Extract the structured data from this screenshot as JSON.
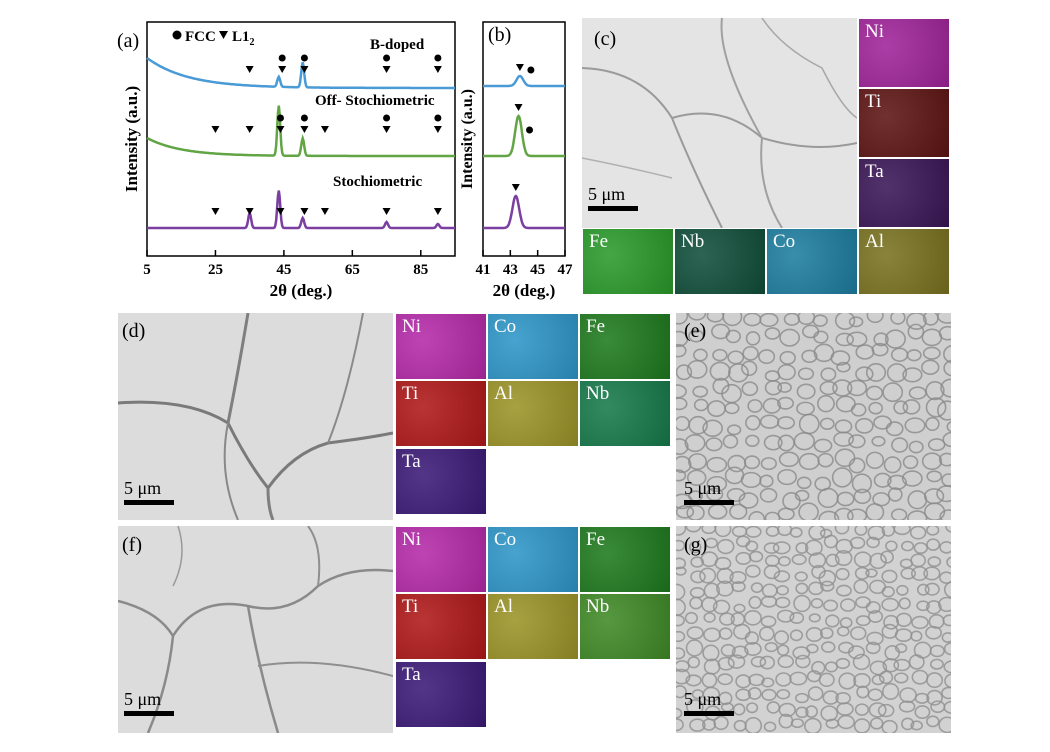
{
  "panels": {
    "a": "(a)",
    "b": "(b)",
    "c": "(c)",
    "d": "(d)",
    "e": "(e)",
    "f": "(f)",
    "g": "(g)"
  },
  "legend": {
    "fcc": "FCC",
    "l12": "L1",
    "l12_sub": "2"
  },
  "scale_label": "5 μm",
  "maps": {
    "c_side": [
      {
        "el": "Ni",
        "color": "#a0249a"
      },
      {
        "el": "Ti",
        "color": "#5e1414"
      },
      {
        "el": "Ta",
        "color": "#3a1656"
      }
    ],
    "c_bottom": [
      {
        "el": "Fe",
        "color": "#2a9a2a"
      },
      {
        "el": "Nb",
        "color": "#104e3a"
      },
      {
        "el": "Co",
        "color": "#1d7ea0"
      },
      {
        "el": "Al",
        "color": "#7a7220"
      }
    ],
    "d": [
      {
        "el": "Ni",
        "color": "#b52aa9"
      },
      {
        "el": "Co",
        "color": "#2e96c8"
      },
      {
        "el": "Fe",
        "color": "#1e7a1e"
      },
      {
        "el": "Ti",
        "color": "#b01818"
      },
      {
        "el": "Al",
        "color": "#9c9428"
      },
      {
        "el": "Nb",
        "color": "#167a4a"
      },
      {
        "el": "Ta",
        "color": "#3c1a78"
      }
    ],
    "f": [
      {
        "el": "Ni",
        "color": "#b52aa9"
      },
      {
        "el": "Co",
        "color": "#2e96c8"
      },
      {
        "el": "Fe",
        "color": "#1e7a1e"
      },
      {
        "el": "Ti",
        "color": "#b01818"
      },
      {
        "el": "Al",
        "color": "#9c9428"
      },
      {
        "el": "Nb",
        "color": "#3f8a26"
      },
      {
        "el": "Ta",
        "color": "#3c1a78"
      }
    ]
  },
  "chart_data": [
    {
      "type": "line",
      "panel": "a",
      "xlabel": "2θ (deg.)",
      "ylabel": "Intensity (a.u.)",
      "xlim": [
        5,
        95
      ],
      "xticks": [
        5,
        25,
        45,
        65,
        85
      ],
      "series": [
        {
          "name": "B-doped",
          "color": "#4a9ad6",
          "peaks": [
            [
              43.5,
              0.2
            ],
            [
              50.5,
              0.5
            ]
          ],
          "fcc_marks": [
            44.5,
            51,
            75,
            90
          ],
          "l12_marks": [
            35,
            44.5,
            51,
            75,
            90
          ]
        },
        {
          "name": "Off- Stochiometric",
          "color": "#62a545",
          "peaks": [
            [
              43.5,
              1.0
            ],
            [
              50.5,
              0.35
            ]
          ],
          "fcc_marks": [
            44,
            51,
            75,
            90
          ],
          "l12_marks": [
            25,
            35,
            44,
            51,
            57,
            75,
            90
          ]
        },
        {
          "name": "Stochiometric",
          "color": "#7a3fa0",
          "peaks": [
            [
              35,
              0.3
            ],
            [
              43.5,
              0.75
            ],
            [
              50.5,
              0.2
            ],
            [
              75,
              0.12
            ],
            [
              90,
              0.08
            ]
          ],
          "fcc_marks": [],
          "l12_marks": [
            25,
            35,
            44,
            51,
            57,
            75,
            90
          ]
        }
      ]
    },
    {
      "type": "line",
      "panel": "b",
      "xlabel": "2θ (deg.)",
      "ylabel": "Intensity (a.u.)",
      "xlim": [
        41,
        47
      ],
      "xticks": [
        41,
        43,
        45,
        47
      ],
      "series": [
        {
          "name": "B-doped",
          "color": "#4a9ad6",
          "peak_x": 43.7,
          "height": 0.25
        },
        {
          "name": "Off- Stochiometric",
          "color": "#62a545",
          "peak_x": 43.6,
          "height": 1.0
        },
        {
          "name": "Stochiometric",
          "color": "#7a3fa0",
          "peak_x": 43.4,
          "height": 0.8
        }
      ]
    }
  ]
}
